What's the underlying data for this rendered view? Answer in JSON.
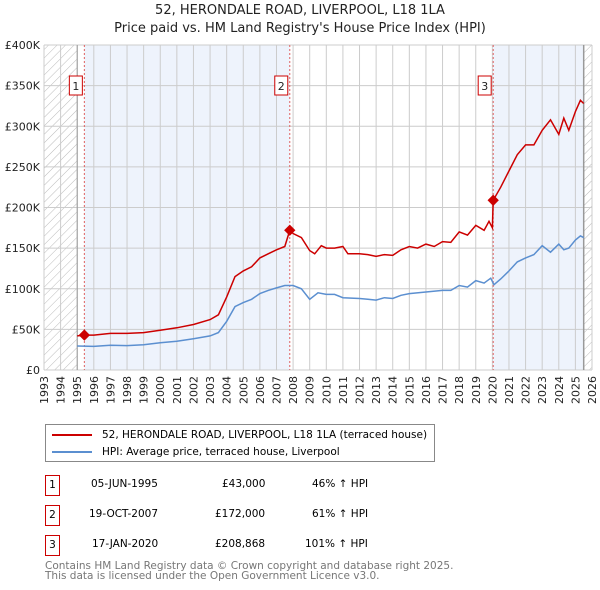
{
  "title": "52, HERONDALE ROAD, LIVERPOOL, L18 1LA",
  "subtitle": "Price paid vs. HM Land Registry's House Price Index (HPI)",
  "colors": {
    "property": "#cc0000",
    "hpi": "#5b8fd0",
    "shade": "#eef3fc"
  },
  "legend": {
    "property": "52, HERONDALE ROAD, LIVERPOOL, L18 1LA (terraced house)",
    "hpi": "HPI: Average price, terraced house, Liverpool"
  },
  "transactions": [
    {
      "num": "1",
      "date": "05-JUN-1995",
      "price": "£43,000",
      "hpi": "46% ↑ HPI"
    },
    {
      "num": "2",
      "date": "19-OCT-2007",
      "price": "£172,000",
      "hpi": "61% ↑ HPI"
    },
    {
      "num": "3",
      "date": "17-JAN-2020",
      "price": "£208,868",
      "hpi": "101% ↑ HPI"
    }
  ],
  "footer": {
    "line1": "Contains HM Land Registry data © Crown copyright and database right 2025.",
    "line2": "This data is licensed under the Open Government Licence v3.0."
  },
  "chart_data": {
    "type": "line",
    "xlim": [
      1993,
      2026
    ],
    "ylim": [
      0,
      400000
    ],
    "xticks": [
      "1993",
      "1994",
      "1995",
      "1996",
      "1997",
      "1998",
      "1999",
      "2000",
      "2001",
      "2002",
      "2003",
      "2004",
      "2005",
      "2006",
      "2007",
      "2008",
      "2009",
      "2010",
      "2011",
      "2012",
      "2013",
      "2014",
      "2015",
      "2016",
      "2017",
      "2018",
      "2019",
      "2020",
      "2021",
      "2022",
      "2023",
      "2024",
      "2025",
      "2026"
    ],
    "yticks": [
      {
        "v": 0,
        "label": "£0"
      },
      {
        "v": 50000,
        "label": "£50K"
      },
      {
        "v": 100000,
        "label": "£100K"
      },
      {
        "v": 150000,
        "label": "£150K"
      },
      {
        "v": 200000,
        "label": "£200K"
      },
      {
        "v": 250000,
        "label": "£250K"
      },
      {
        "v": 300000,
        "label": "£300K"
      },
      {
        "v": 350000,
        "label": "£350K"
      },
      {
        "v": 400000,
        "label": "£400K"
      }
    ],
    "grid": true,
    "data_start": 1995.0,
    "data_end": 2025.5,
    "shaded_ranges": [
      [
        1995.43,
        2007.8
      ],
      [
        2020.05,
        2025.5
      ]
    ],
    "sales": [
      {
        "label": "1",
        "x": 1995.43,
        "y": 43000
      },
      {
        "label": "2",
        "x": 2007.8,
        "y": 172000
      },
      {
        "label": "3",
        "x": 2020.05,
        "y": 208868
      }
    ],
    "series": [
      {
        "name": "52, HERONDALE ROAD, LIVERPOOL, L18 1LA (terraced house)",
        "color": "#cc0000",
        "x": [
          1995,
          1995.43,
          1996,
          1997,
          1998,
          1999,
          2000,
          2001,
          2002,
          2003,
          2003.5,
          2004,
          2004.5,
          2005,
          2005.5,
          2006,
          2006.5,
          2007,
          2007.5,
          2007.8,
          2008,
          2008.5,
          2009,
          2009.3,
          2009.7,
          2010,
          2010.5,
          2011,
          2011.3,
          2012,
          2012.5,
          2013,
          2013.5,
          2014,
          2014.5,
          2015,
          2015.5,
          2016,
          2016.5,
          2017,
          2017.5,
          2018,
          2018.5,
          2019,
          2019.5,
          2019.8,
          2020.0,
          2020.05,
          2020.5,
          2021,
          2021.5,
          2022,
          2022.5,
          2023,
          2023.5,
          2024,
          2024.3,
          2024.6,
          2025,
          2025.3,
          2025.5
        ],
        "y": [
          42000,
          43000,
          43000,
          45000,
          45000,
          46000,
          49000,
          52000,
          56000,
          62000,
          68000,
          90000,
          115000,
          122000,
          127000,
          138000,
          143000,
          148000,
          152000,
          172000,
          168000,
          163000,
          147000,
          143000,
          153000,
          150000,
          150000,
          152000,
          143000,
          143000,
          142000,
          140000,
          142000,
          141000,
          148000,
          152000,
          150000,
          155000,
          152000,
          158000,
          157000,
          170000,
          166000,
          178000,
          172000,
          183000,
          175000,
          208868,
          225000,
          245000,
          265000,
          277000,
          277000,
          295000,
          308000,
          290000,
          310000,
          295000,
          318000,
          332000,
          328000
        ]
      },
      {
        "name": "HPI: Average price, terraced house, Liverpool",
        "color": "#5b8fd0",
        "x": [
          1995,
          1996,
          1997,
          1998,
          1999,
          2000,
          2001,
          2002,
          2003,
          2003.5,
          2004,
          2004.5,
          2005,
          2005.5,
          2006,
          2006.5,
          2007,
          2007.5,
          2008,
          2008.5,
          2009,
          2009.5,
          2010,
          2010.5,
          2011,
          2012,
          2012.5,
          2013,
          2013.5,
          2014,
          2014.5,
          2015,
          2016,
          2017,
          2017.5,
          2018,
          2018.5,
          2019,
          2019.5,
          2019.9,
          2020.1,
          2020.5,
          2021,
          2021.5,
          2022,
          2022.5,
          2023,
          2023.5,
          2024,
          2024.3,
          2024.6,
          2025,
          2025.3,
          2025.5
        ],
        "y": [
          29500,
          29000,
          30500,
          30000,
          31000,
          33500,
          35500,
          38500,
          42000,
          46000,
          60000,
          78000,
          83000,
          87000,
          94000,
          98000,
          101000,
          104000,
          104000,
          100000,
          87000,
          95000,
          93000,
          93000,
          89000,
          88000,
          87000,
          86000,
          89000,
          88000,
          92000,
          94000,
          96000,
          98000,
          98000,
          104000,
          102000,
          110000,
          107000,
          113000,
          105000,
          112000,
          122000,
          133000,
          138000,
          142000,
          153000,
          145000,
          155000,
          148000,
          150000,
          160000,
          165000,
          163000
        ]
      }
    ]
  }
}
